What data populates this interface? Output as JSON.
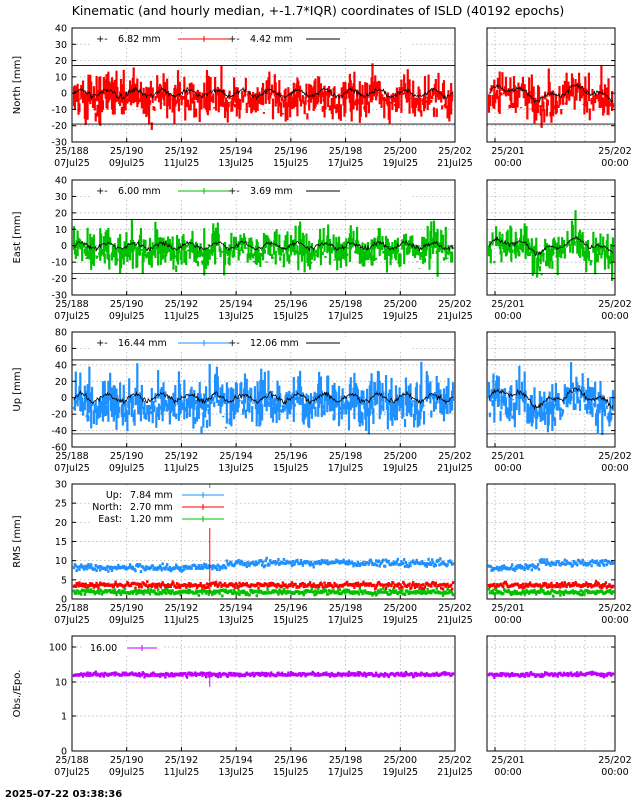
{
  "title": "Kinematic (and hourly median, +-1.7*IQR) coordinates of ISLD (40192 epochs)",
  "footer_timestamp": "2025-07-22 03:38:36",
  "x_ticks_main": [
    {
      "day": "25/188",
      "date": "07Jul25"
    },
    {
      "day": "25/190",
      "date": "09Jul25"
    },
    {
      "day": "25/192",
      "date": "11Jul25"
    },
    {
      "day": "25/194",
      "date": "13Jul25"
    },
    {
      "day": "25/196",
      "date": "15Jul25"
    },
    {
      "day": "25/198",
      "date": "17Jul25"
    },
    {
      "day": "25/200",
      "date": "19Jul25"
    },
    {
      "day": "25/202",
      "date": "21Jul25"
    }
  ],
  "x_ticks_zoom": [
    {
      "day": "25/201",
      "time": "00:00"
    },
    {
      "day": "25/202",
      "time": "00:00"
    }
  ],
  "chart_data": [
    {
      "type": "scatter",
      "ylabel": "North [mm]",
      "ylim": [
        -30,
        40
      ],
      "yticks": [
        40,
        30,
        20,
        10,
        0,
        -10,
        -20,
        -30
      ],
      "iqr_bounds": [
        17,
        -19
      ],
      "noise_mm": 9,
      "legend": [
        {
          "label": "+-",
          "value": "6.82 mm"
        },
        {
          "label": "+-",
          "value": "4.42 mm"
        }
      ],
      "series": [
        {
          "color": "#ff0000"
        },
        {
          "color": "#000000"
        }
      ]
    },
    {
      "type": "scatter",
      "ylabel": "East [mm]",
      "ylim": [
        -30,
        40
      ],
      "yticks": [
        40,
        30,
        20,
        10,
        0,
        -10,
        -20,
        -30
      ],
      "iqr_bounds": [
        16,
        -17
      ],
      "noise_mm": 8,
      "legend": [
        {
          "label": "+-",
          "value": "6.00 mm"
        },
        {
          "label": "+-",
          "value": "3.69 mm"
        }
      ],
      "series": [
        {
          "color": "#00c000"
        },
        {
          "color": "#000000"
        }
      ]
    },
    {
      "type": "scatter",
      "ylabel": "Up [mm]",
      "ylim": [
        -60,
        80
      ],
      "yticks": [
        80,
        60,
        40,
        20,
        0,
        -20,
        -40,
        -60
      ],
      "iqr_bounds": [
        46,
        -44
      ],
      "noise_mm": 20,
      "legend": [
        {
          "label": "+-",
          "value": "16.44 mm"
        },
        {
          "label": "+-",
          "value": "12.06 mm"
        }
      ],
      "series": [
        {
          "color": "#1e90ff"
        },
        {
          "color": "#000000"
        }
      ]
    },
    {
      "type": "scatter",
      "ylabel": "RMS [mm]",
      "ylim": [
        0,
        30
      ],
      "yticks": [
        30,
        25,
        20,
        15,
        10,
        5,
        0
      ],
      "legend": [
        {
          "label": "Up:",
          "value": "7.84 mm"
        },
        {
          "label": "North:",
          "value": "2.70 mm"
        },
        {
          "label": "East:",
          "value": "1.20 mm"
        }
      ],
      "series": [
        {
          "name": "Up",
          "color": "#1e90ff",
          "level": 8.2
        },
        {
          "name": "North",
          "color": "#ff0000",
          "level": 3.6
        },
        {
          "name": "East",
          "color": "#00c000",
          "level": 1.8
        }
      ]
    },
    {
      "type": "scatter",
      "ylabel": "Obs./Epo.",
      "yscale": "log",
      "yticks": [
        "100",
        "10",
        "1",
        "0"
      ],
      "legend": [
        {
          "label": "",
          "value": "16.00"
        }
      ],
      "series": [
        {
          "color": "#c000ff",
          "level": 16
        }
      ]
    }
  ]
}
